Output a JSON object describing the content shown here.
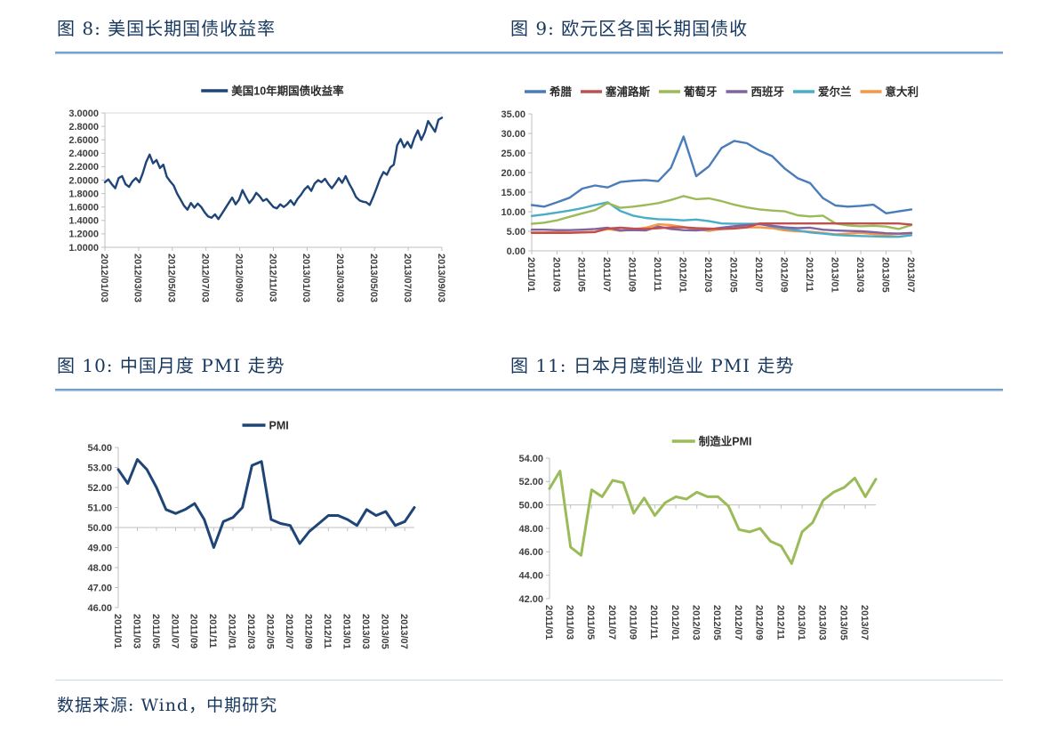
{
  "page": {
    "source": "数据来源: Wind，中期研究"
  },
  "chart_data": [
    {
      "id": "us10y",
      "type": "line",
      "title": "图 8: 美国长期国债收益率",
      "legend": [
        {
          "label": "美国10年期国债收益率",
          "color": "#1f4577"
        }
      ],
      "ylim": [
        1.0,
        3.0
      ],
      "yticks": [
        "3.0000",
        "2.8000",
        "2.6000",
        "2.4000",
        "2.2000",
        "2.0000",
        "1.8000",
        "1.6000",
        "1.4000",
        "1.2000",
        "1.0000"
      ],
      "xticklabels": [
        "2012/01/03",
        "2012/03/03",
        "2012/05/03",
        "2012/07/03",
        "2012/09/03",
        "2012/11/03",
        "2013/01/03",
        "2013/03/03",
        "2013/05/03",
        "2013/07/03",
        "2013/09/03"
      ],
      "gridlines": [
        3.0
      ],
      "axis_cross": 1.0,
      "grid": "off",
      "legend_position": "top-center",
      "series": [
        {
          "name": "美国10年期国债收益率",
          "color": "#1f4577",
          "width": 2.4,
          "values": [
            1.97,
            2.01,
            1.94,
            1.88,
            2.03,
            2.06,
            1.94,
            1.9,
            1.98,
            2.03,
            1.97,
            2.1,
            2.27,
            2.38,
            2.25,
            2.3,
            2.18,
            2.23,
            2.05,
            1.98,
            1.92,
            1.8,
            1.71,
            1.62,
            1.56,
            1.66,
            1.59,
            1.65,
            1.6,
            1.52,
            1.46,
            1.44,
            1.49,
            1.42,
            1.5,
            1.58,
            1.66,
            1.74,
            1.64,
            1.71,
            1.85,
            1.75,
            1.66,
            1.72,
            1.81,
            1.76,
            1.69,
            1.72,
            1.66,
            1.6,
            1.58,
            1.64,
            1.6,
            1.64,
            1.7,
            1.63,
            1.72,
            1.78,
            1.86,
            1.91,
            1.84,
            1.95,
            2.0,
            1.97,
            2.02,
            1.94,
            1.88,
            1.95,
            2.03,
            1.96,
            2.06,
            1.95,
            1.86,
            1.75,
            1.7,
            1.68,
            1.67,
            1.63,
            1.75,
            1.88,
            2.02,
            2.12,
            2.08,
            2.19,
            2.23,
            2.52,
            2.61,
            2.49,
            2.57,
            2.48,
            2.63,
            2.74,
            2.6,
            2.71,
            2.88,
            2.8,
            2.72,
            2.9,
            2.93
          ]
        }
      ]
    },
    {
      "id": "euro",
      "type": "line",
      "title": "图 9: 欧元区各国长期国债收",
      "legend": [
        {
          "label": "希腊",
          "color": "#4a7cba"
        },
        {
          "label": "塞浦路斯",
          "color": "#c0504d"
        },
        {
          "label": "葡萄牙",
          "color": "#9bbb59"
        },
        {
          "label": "西班牙",
          "color": "#8064a2"
        },
        {
          "label": "爱尔兰",
          "color": "#4bacc6"
        },
        {
          "label": "意大利",
          "color": "#f79646"
        }
      ],
      "ylim": [
        0,
        35
      ],
      "yticks": [
        "35.00",
        "30.00",
        "25.00",
        "20.00",
        "15.00",
        "10.00",
        "5.00",
        "0.00"
      ],
      "xticklabels": [
        "2011/01",
        "2011/03",
        "2011/05",
        "2011/07",
        "2011/09",
        "2011/11",
        "2012/01",
        "2012/03",
        "2012/05",
        "2012/07",
        "2012/09",
        "2012/11",
        "2013/01",
        "2013/03",
        "2013/05",
        "2013/07"
      ],
      "xtick_idx": [
        0,
        2,
        4,
        6,
        8,
        10,
        12,
        14,
        16,
        18,
        20,
        22,
        24,
        26,
        28,
        30
      ],
      "gridlines": [],
      "axis_cross": 0,
      "grid": "off",
      "legend_position": "top-center",
      "series": [
        {
          "name": "希腊",
          "color": "#4a7cba",
          "width": 2.4,
          "values": [
            11.7,
            11.3,
            12.4,
            13.6,
            15.9,
            16.7,
            16.2,
            17.6,
            17.9,
            18.1,
            17.8,
            21.2,
            29.2,
            19.1,
            21.6,
            26.3,
            28.1,
            27.5,
            25.6,
            24.2,
            21.0,
            18.6,
            17.3,
            13.5,
            11.6,
            11.3,
            11.5,
            11.8,
            9.6,
            10.1,
            10.6
          ]
        },
        {
          "name": "塞浦路斯",
          "color": "#c0504d",
          "width": 2.4,
          "values": [
            4.6,
            4.6,
            4.6,
            4.6,
            4.7,
            4.8,
            5.7,
            5.9,
            5.7,
            5.6,
            5.8,
            6.0,
            6.0,
            5.8,
            5.7,
            5.6,
            5.7,
            6.0,
            7.0,
            7.0,
            7.0,
            7.0,
            7.0,
            7.0,
            7.0,
            7.0,
            7.0,
            7.0,
            7.0,
            7.0,
            6.7
          ]
        },
        {
          "name": "葡萄牙",
          "color": "#9bbb59",
          "width": 2.4,
          "values": [
            6.9,
            7.2,
            7.8,
            8.7,
            9.6,
            10.4,
            12.2,
            11.0,
            11.3,
            11.7,
            12.2,
            13.0,
            14.0,
            13.2,
            13.4,
            12.7,
            11.8,
            11.1,
            10.6,
            10.3,
            10.1,
            9.1,
            8.8,
            9.0,
            7.0,
            6.5,
            6.3,
            6.4,
            6.2,
            5.6,
            6.6
          ]
        },
        {
          "name": "西班牙",
          "color": "#8064a2",
          "width": 2.4,
          "values": [
            5.4,
            5.4,
            5.3,
            5.3,
            5.4,
            5.6,
            5.9,
            5.2,
            5.3,
            5.2,
            6.2,
            5.6,
            5.3,
            5.2,
            5.5,
            5.9,
            6.3,
            6.6,
            6.8,
            6.4,
            6.0,
            5.8,
            5.9,
            5.4,
            5.2,
            5.1,
            5.0,
            4.8,
            4.5,
            4.4,
            4.6
          ]
        },
        {
          "name": "爱尔兰",
          "color": "#4bacc6",
          "width": 2.4,
          "values": [
            8.9,
            9.3,
            9.8,
            10.3,
            10.9,
            11.7,
            12.4,
            10.2,
            9.0,
            8.4,
            8.1,
            8.0,
            7.8,
            8.0,
            7.6,
            7.0,
            6.9,
            6.9,
            6.9,
            6.2,
            5.7,
            5.2,
            4.7,
            4.4,
            4.1,
            3.9,
            3.8,
            3.7,
            3.6,
            3.6,
            4.0
          ]
        },
        {
          "name": "意大利",
          "color": "#f79646",
          "width": 2.4,
          "values": [
            4.7,
            4.7,
            4.8,
            4.7,
            4.8,
            4.9,
            5.6,
            5.1,
            5.5,
            5.9,
            6.8,
            6.6,
            6.1,
            5.5,
            5.1,
            5.6,
            5.9,
            6.0,
            6.0,
            5.8,
            5.2,
            5.0,
            4.9,
            4.6,
            4.2,
            4.4,
            4.6,
            4.3,
            4.1,
            4.3,
            4.4
          ]
        }
      ]
    },
    {
      "id": "cnpmi",
      "type": "line",
      "title": "图 10: 中国月度 PMI 走势",
      "legend": [
        {
          "label": "PMI",
          "color": "#1f4577"
        }
      ],
      "ylim": [
        46,
        54
      ],
      "yticks": [
        "54.00",
        "53.00",
        "52.00",
        "51.00",
        "50.00",
        "49.00",
        "48.00",
        "47.00",
        "46.00"
      ],
      "xticklabels": [
        "2011/01",
        "2011/03",
        "2011/05",
        "2011/07",
        "2011/09",
        "2011/11",
        "2012/01",
        "2012/03",
        "2012/05",
        "2012/07",
        "2012/09",
        "2012/11",
        "2013/01",
        "2013/03",
        "2013/05",
        "2013/07"
      ],
      "xtick_idx": [
        0,
        2,
        4,
        6,
        8,
        10,
        12,
        14,
        16,
        18,
        20,
        22,
        24,
        26,
        28,
        30
      ],
      "gridlines": [],
      "axis_cross": 50,
      "grid": "off",
      "legend_position": "top-center",
      "series": [
        {
          "name": "PMI",
          "color": "#1f4577",
          "width": 3,
          "values": [
            52.9,
            52.2,
            53.4,
            52.9,
            52.0,
            50.9,
            50.7,
            50.9,
            51.2,
            50.4,
            49.0,
            50.3,
            50.5,
            51.0,
            53.1,
            53.3,
            50.4,
            50.2,
            50.1,
            49.2,
            49.8,
            50.2,
            50.6,
            50.6,
            50.4,
            50.1,
            50.9,
            50.6,
            50.8,
            50.1,
            50.3,
            51.0
          ]
        }
      ]
    },
    {
      "id": "jppmi",
      "type": "line",
      "title": "图 11: 日本月度制造业 PMI 走势",
      "legend": [
        {
          "label": "制造业PMI",
          "color": "#9bbb59"
        }
      ],
      "ylim": [
        42,
        54
      ],
      "yticks": [
        "54.00",
        "52.00",
        "50.00",
        "48.00",
        "46.00",
        "44.00",
        "42.00"
      ],
      "xticklabels": [
        "2011/01",
        "2011/03",
        "2011/05",
        "2011/07",
        "2011/09",
        "2011/11",
        "2012/01",
        "2012/03",
        "2012/05",
        "2012/07",
        "2012/09",
        "2012/11",
        "2013/01",
        "2013/03",
        "2013/05",
        "2013/07"
      ],
      "xtick_idx": [
        0,
        2,
        4,
        6,
        8,
        10,
        12,
        14,
        16,
        18,
        20,
        22,
        24,
        26,
        28,
        30
      ],
      "gridlines": [],
      "axis_cross": 50,
      "grid": "off",
      "legend_position": "top-center",
      "series": [
        {
          "name": "制造业PMI",
          "color": "#9bbb59",
          "width": 3,
          "values": [
            51.4,
            52.9,
            46.4,
            45.7,
            51.3,
            50.7,
            52.1,
            51.9,
            49.3,
            50.6,
            49.1,
            50.2,
            50.7,
            50.5,
            51.1,
            50.7,
            50.7,
            49.9,
            47.9,
            47.7,
            48.0,
            46.9,
            46.5,
            45.0,
            47.7,
            48.5,
            50.4,
            51.1,
            51.5,
            52.3,
            50.7,
            52.2
          ]
        }
      ]
    }
  ]
}
